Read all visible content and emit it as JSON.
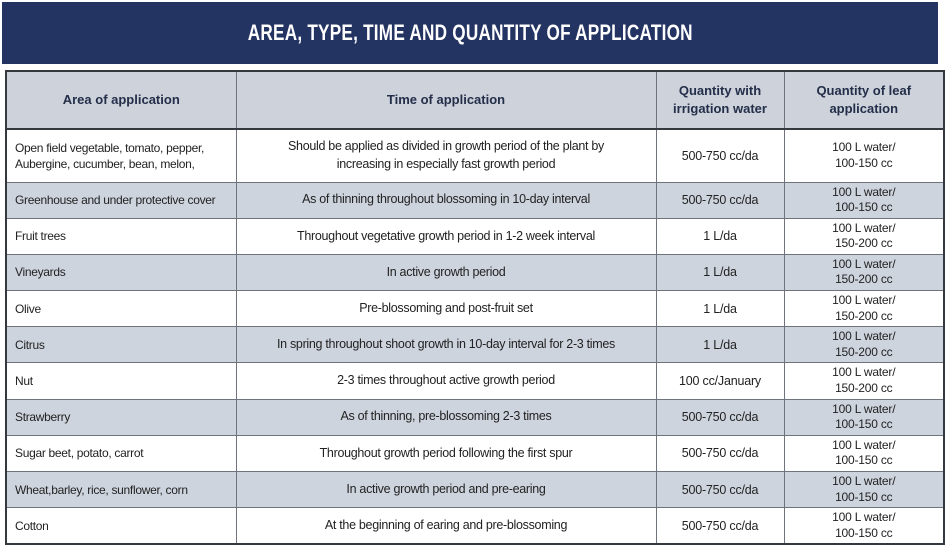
{
  "banner": {
    "title": "AREA, TYPE, TIME AND QUANTITY OF APPLICATION"
  },
  "table": {
    "columns": [
      "Area of application",
      "Time of application",
      "Quantity with irrigation water",
      "Quantity of leaf application"
    ],
    "rows": [
      {
        "area": "Open field vegetable, tomato, pepper,\nAubergine, cucumber, bean, melon,",
        "time": "Should be applied as divided in growth period of the plant by\nincreasing in especially fast growth period",
        "irrigation": "500-750 cc/da",
        "leaf": "100 L water/\n100-150 cc"
      },
      {
        "area": "Greenhouse and under protective cover",
        "time": "As of thinning throughout blossoming in 10-day interval",
        "irrigation": "500-750 cc/da",
        "leaf": "100 L water/\n100-150 cc"
      },
      {
        "area": "Fruit trees",
        "time": "Throughout vegetative growth period in 1-2 week interval",
        "irrigation": "1 L/da",
        "leaf": "100 L water/\n150-200 cc"
      },
      {
        "area": "Vineyards",
        "time": "In active growth period",
        "irrigation": "1 L/da",
        "leaf": "100 L water/\n150-200 cc"
      },
      {
        "area": "Olive",
        "time": "Pre-blossoming and post-fruit set",
        "irrigation": "1 L/da",
        "leaf": "100 L water/\n150-200 cc"
      },
      {
        "area": "Citrus",
        "time": "In spring throughout shoot growth in 10-day interval for 2-3 times",
        "irrigation": "1 L/da",
        "leaf": "100 L water/\n150-200 cc"
      },
      {
        "area": "Nut",
        "time": "2-3 times throughout active growth period",
        "irrigation": "100 cc/January",
        "leaf": "100 L water/\n150-200 cc"
      },
      {
        "area": "Strawberry",
        "time": "As of thinning, pre-blossoming 2-3 times",
        "irrigation": "500-750 cc/da",
        "leaf": "100 L water/\n100-150 cc"
      },
      {
        "area": "Sugar beet, potato, carrot",
        "time": "Throughout growth period following the first spur",
        "irrigation": "500-750 cc/da",
        "leaf": "100 L water/\n100-150 cc"
      },
      {
        "area": "Wheat,barley, rice, sunflower, corn",
        "time": "In active growth period and pre-earing",
        "irrigation": "500-750 cc/da",
        "leaf": "100 L water/\n100-150 cc"
      },
      {
        "area": "Cotton",
        "time": "At the beginning of earing and pre-blossoming",
        "irrigation": "500-750 cc/da",
        "leaf": "100 L water/\n100-150 cc"
      }
    ]
  },
  "colors": {
    "banner_bg": "#243462",
    "banner_text": "#ffffff",
    "header_bg": "#cdd2db",
    "header_text": "#232e49",
    "row_shade": "#ced4de",
    "row_white": "#ffffff",
    "body_text": "#222222",
    "border_dark": "#34383f",
    "border_light": "#6e737c"
  }
}
